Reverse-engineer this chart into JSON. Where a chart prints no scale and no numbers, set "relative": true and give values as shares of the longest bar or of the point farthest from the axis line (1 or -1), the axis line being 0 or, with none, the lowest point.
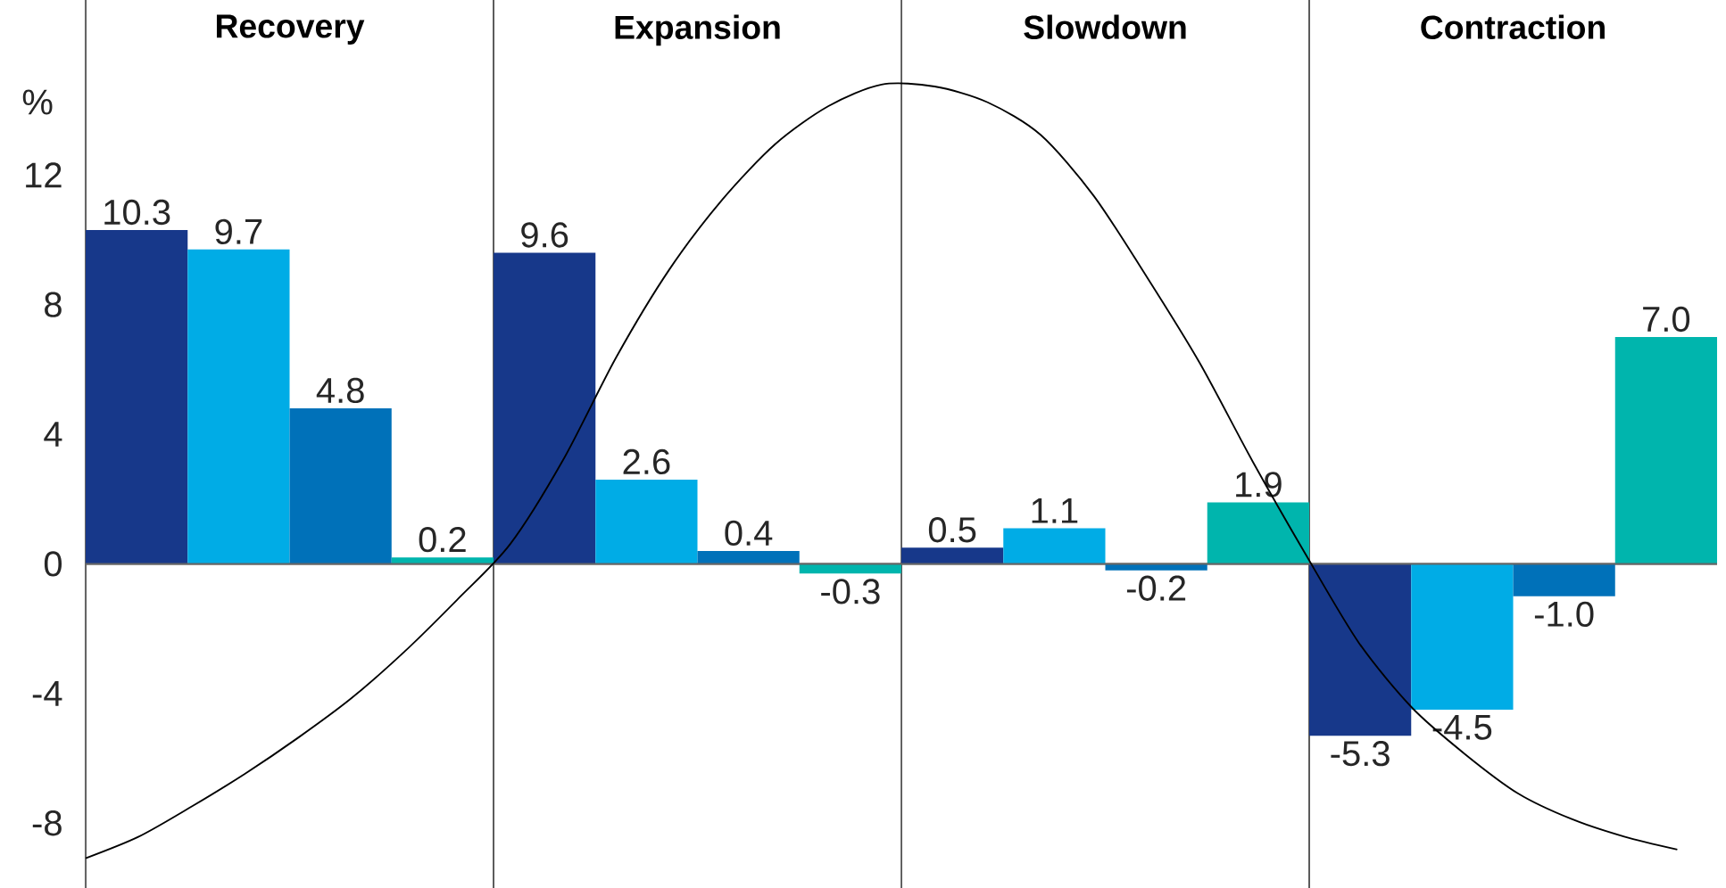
{
  "chart_data": [
    {
      "type": "bar",
      "ylabel": "%",
      "categories": [
        "Recovery",
        "Expansion",
        "Slowdown",
        "Contraction"
      ],
      "ylim": [
        -10,
        17.4
      ],
      "yticks": [
        -8,
        -4,
        0,
        4,
        8,
        12
      ],
      "grid": "x",
      "legend": false,
      "series": [
        {
          "color": "#17388a",
          "values": [
            10.3,
            9.6,
            0.5,
            -5.3
          ],
          "value_labels": [
            "10.3",
            "9.6",
            "0.5",
            "-5.3"
          ]
        },
        {
          "color": "#00ace6",
          "values": [
            9.7,
            2.6,
            1.1,
            -4.5
          ],
          "value_labels": [
            "9.7",
            "2.6",
            "1.1",
            "-4.5"
          ]
        },
        {
          "color": "#0071b9",
          "values": [
            4.8,
            0.4,
            -0.2,
            -1.0
          ],
          "value_labels": [
            "4.8",
            "0.4",
            "-0.2",
            "-1.0"
          ]
        },
        {
          "color": "#00b5ad",
          "values": [
            0.2,
            -0.3,
            1.9,
            7.0
          ],
          "value_labels": [
            "0.2",
            "-0.3",
            "1.9",
            "7.0"
          ]
        }
      ]
    },
    {
      "type": "line",
      "relative": true,
      "marker": "none",
      "categories": [
        null,
        null,
        null,
        null,
        null,
        null,
        null,
        null,
        null,
        null,
        null,
        null,
        null,
        null,
        null,
        null,
        null,
        null,
        null,
        null,
        null,
        null,
        null,
        null,
        null,
        null,
        null,
        null,
        null,
        null,
        null
      ],
      "series": [
        {
          "color": "#000000",
          "values": [
            -0.614,
            -0.569,
            -0.506,
            -0.438,
            -0.363,
            -0.281,
            -0.184,
            -0.075,
            0.041,
            0.217,
            0.431,
            0.614,
            0.76,
            0.876,
            0.955,
            1,
            0.996,
            0.963,
            0.895,
            0.768,
            0.599,
            0.419,
            0.213,
            0.019,
            -0.165,
            -0.3,
            -0.397,
            -0.479,
            -0.532,
            -0.569,
            -0.596
          ]
        }
      ]
    }
  ]
}
